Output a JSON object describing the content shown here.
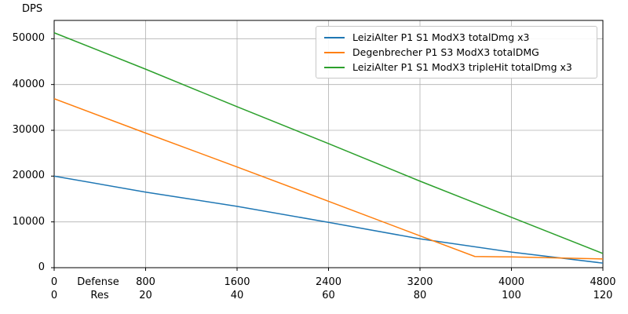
{
  "chart_data": {
    "type": "line",
    "title": "",
    "ylabel": "DPS",
    "xlabel_primary": "Defense",
    "xlabel_secondary": "Res",
    "xlim": [
      0,
      4800
    ],
    "ylim": [
      0,
      54000
    ],
    "grid": true,
    "legend_position": "upper right",
    "x_ticks_defense": [
      0,
      800,
      1600,
      2400,
      3200,
      4000,
      4800
    ],
    "x_ticks_res": [
      0,
      20,
      40,
      60,
      80,
      100,
      120
    ],
    "y_ticks": [
      0,
      10000,
      20000,
      30000,
      40000,
      50000
    ],
    "series": [
      {
        "name": "LeiziAlter P1 S1 ModX3 totalDmg x3",
        "color": "#1f77b4",
        "x": [
          0,
          800,
          1600,
          2400,
          3200,
          4000,
          4800
        ],
        "y": [
          20000,
          16500,
          13400,
          9900,
          6300,
          3400,
          1000
        ]
      },
      {
        "name": "Degenbrecher P1 S3 ModX3 totalDMG",
        "color": "#ff7f0e",
        "x": [
          0,
          800,
          1600,
          2400,
          3200,
          3680,
          4000,
          4800
        ],
        "y": [
          36900,
          29400,
          22000,
          14500,
          6950,
          2450,
          2350,
          1900
        ]
      },
      {
        "name": "LeiziAlter P1 S1 ModX3 tripleHit totalDmg x3",
        "color": "#2ca02c",
        "x": [
          0,
          800,
          1600,
          2400,
          3200,
          4000,
          4800
        ],
        "y": [
          51300,
          43350,
          35150,
          27100,
          18900,
          11000,
          3100
        ]
      }
    ]
  }
}
